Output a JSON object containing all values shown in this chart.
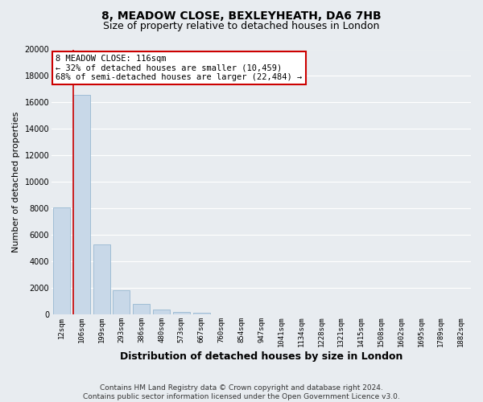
{
  "title": "8, MEADOW CLOSE, BEXLEYHEATH, DA6 7HB",
  "subtitle": "Size of property relative to detached houses in London",
  "xlabel": "Distribution of detached houses by size in London",
  "ylabel": "Number of detached properties",
  "categories": [
    "12sqm",
    "106sqm",
    "199sqm",
    "293sqm",
    "386sqm",
    "480sqm",
    "573sqm",
    "667sqm",
    "760sqm",
    "854sqm",
    "947sqm",
    "1041sqm",
    "1134sqm",
    "1228sqm",
    "1321sqm",
    "1415sqm",
    "1508sqm",
    "1602sqm",
    "1695sqm",
    "1789sqm",
    "1882sqm"
  ],
  "bar_values": [
    8100,
    16600,
    5300,
    1800,
    800,
    350,
    200,
    100,
    0,
    0,
    0,
    0,
    0,
    0,
    0,
    0,
    0,
    0,
    0,
    0,
    0
  ],
  "bar_color": "#c8d8e8",
  "bar_edgecolor": "#8ab0cc",
  "vline_color": "#cc0000",
  "vline_x": 0.575,
  "ylim": [
    0,
    20000
  ],
  "yticks": [
    0,
    2000,
    4000,
    6000,
    8000,
    10000,
    12000,
    14000,
    16000,
    18000,
    20000
  ],
  "annotation_title": "8 MEADOW CLOSE: 116sqm",
  "annotation_line1": "← 32% of detached houses are smaller (10,459)",
  "annotation_line2": "68% of semi-detached houses are larger (22,484) →",
  "annotation_box_facecolor": "#ffffff",
  "annotation_box_edgecolor": "#cc0000",
  "footnote1": "Contains HM Land Registry data © Crown copyright and database right 2024.",
  "footnote2": "Contains public sector information licensed under the Open Government Licence v3.0.",
  "background_color": "#e8ecf0",
  "plot_background_color": "#e8ecf0",
  "grid_color": "#ffffff",
  "title_fontsize": 10,
  "subtitle_fontsize": 9,
  "xlabel_fontsize": 9,
  "ylabel_fontsize": 8,
  "tick_fontsize": 6.5,
  "footnote_fontsize": 6.5,
  "annotation_fontsize": 7.5
}
